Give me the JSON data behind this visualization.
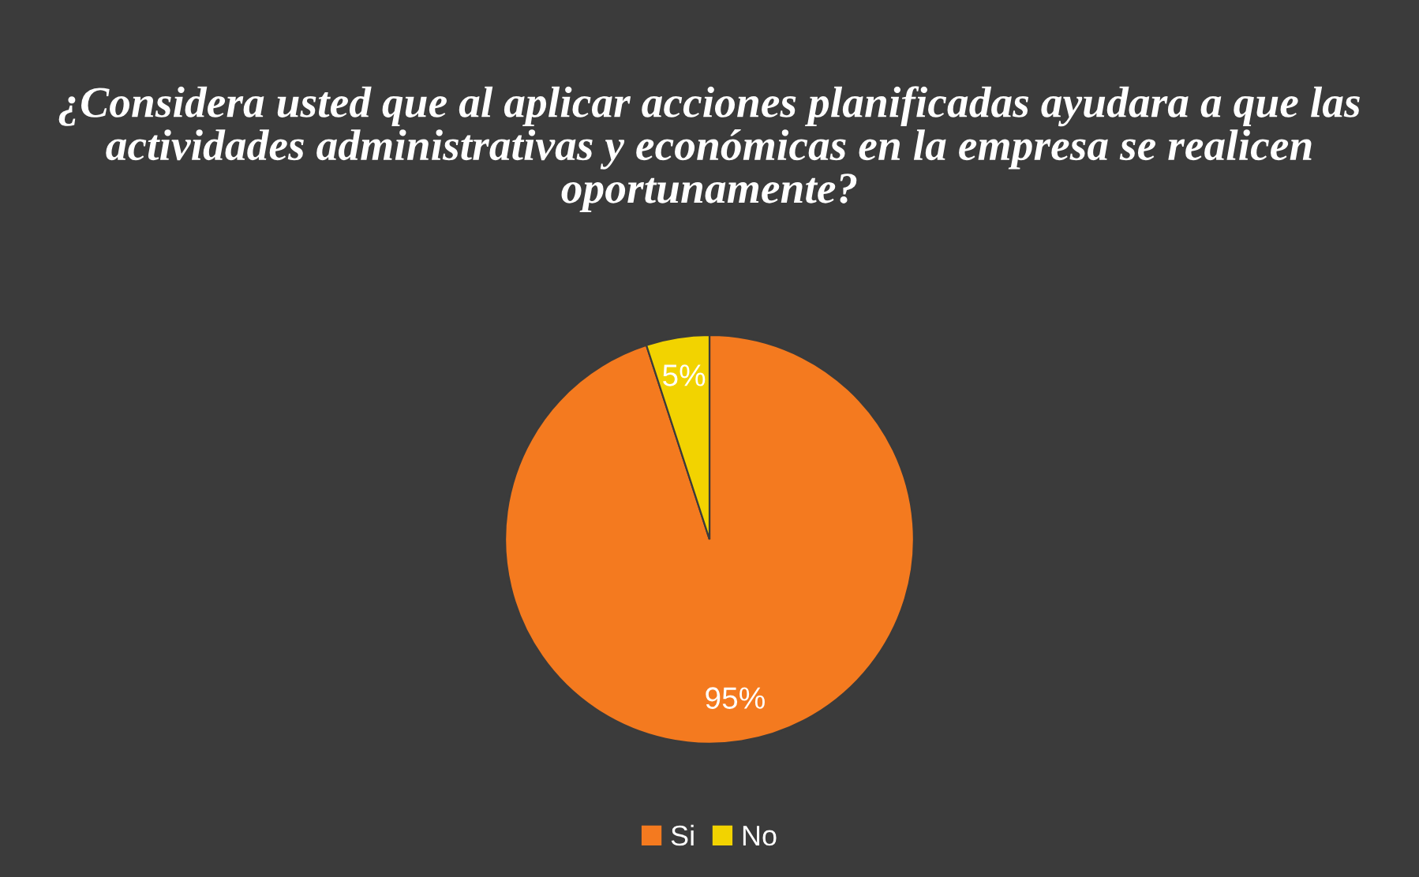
{
  "chart_data": {
    "type": "pie",
    "title": "¿Considera usted que al aplicar acciones planificadas ayudara a que las actividades administrativas y económicas en la empresa se realicen oportunamente?",
    "categories": [
      "Si",
      "No"
    ],
    "values": [
      95,
      5
    ],
    "colors": [
      "#f47a1f",
      "#f2d300"
    ],
    "value_labels": [
      "95%",
      "5%"
    ],
    "legend": "bottom"
  }
}
